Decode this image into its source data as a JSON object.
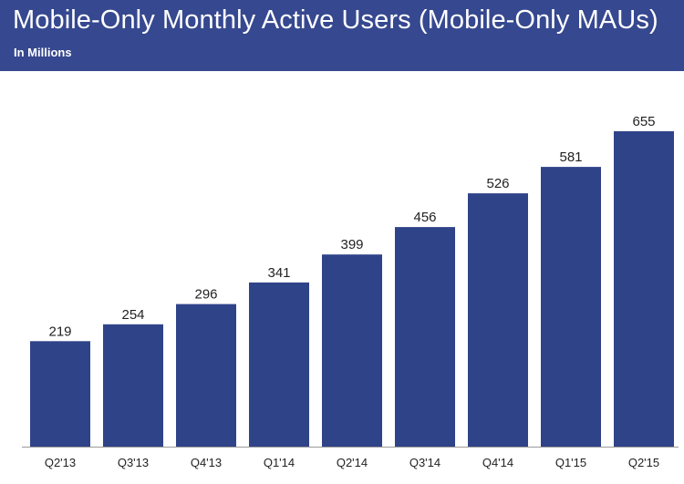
{
  "chart_data": {
    "type": "bar",
    "title": "Mobile-Only Monthly Active Users (Mobile-Only MAUs)",
    "subtitle": "In Millions",
    "xlabel": "",
    "ylabel": "",
    "categories": [
      "Q2'13",
      "Q3'13",
      "Q4'13",
      "Q1'14",
      "Q2'14",
      "Q3'14",
      "Q4'14",
      "Q1'15",
      "Q2'15"
    ],
    "values": [
      219,
      254,
      296,
      341,
      399,
      456,
      526,
      581,
      655
    ],
    "ylim": [
      0,
      655
    ],
    "grid": false,
    "legend": "none",
    "bar_color": "#2f4389",
    "header_color": "#36488f"
  }
}
